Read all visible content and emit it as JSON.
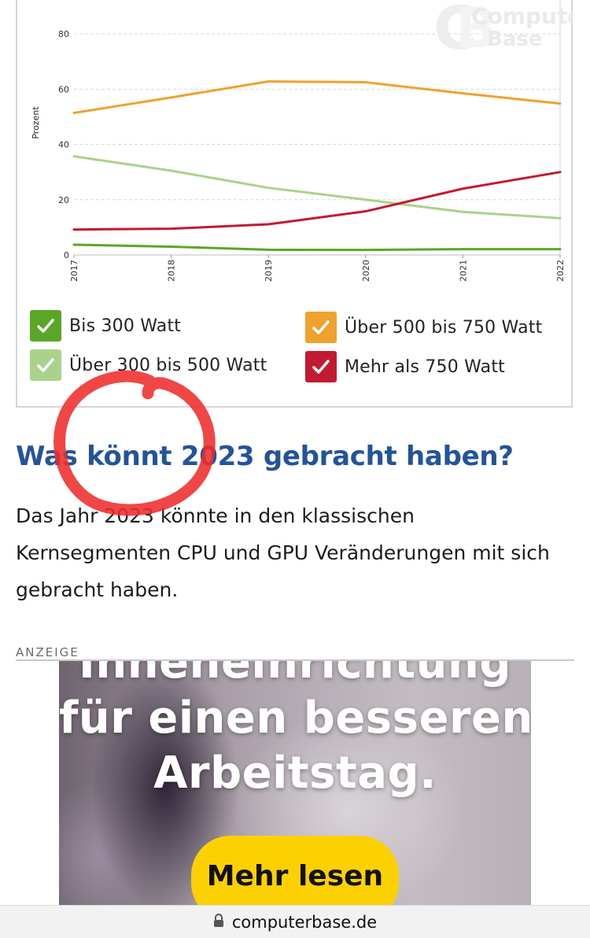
{
  "chart_data": {
    "type": "line",
    "x": [
      "2017",
      "2018",
      "2019",
      "2020",
      "2021",
      "2022"
    ],
    "ylabel": "Prozent",
    "ylim": [
      0,
      90
    ],
    "yticks": [
      0,
      20,
      40,
      60,
      80
    ],
    "grid": true,
    "series": [
      {
        "name": "Bis 300 Watt",
        "color": "#5aa627",
        "values": [
          3.7,
          3.0,
          1.9,
          1.8,
          2.1,
          2.1
        ]
      },
      {
        "name": "Über 300 bis 500 Watt",
        "color": "#a9d38a",
        "values": [
          35.7,
          30.5,
          24.3,
          20.0,
          15.6,
          13.3
        ]
      },
      {
        "name": "Über 500 bis 750 Watt",
        "color": "#f0a22e",
        "values": [
          51.4,
          57.0,
          62.8,
          62.5,
          58.5,
          54.8
        ]
      },
      {
        "name": "Mehr als 750 Watt",
        "color": "#c21a30",
        "values": [
          9.2,
          9.5,
          11.1,
          15.8,
          24.0,
          30.0
        ]
      }
    ]
  },
  "watermark": {
    "line1": "Computer",
    "line2": "Base"
  },
  "article": {
    "headline": "Was könnt 2023 gebracht haben?",
    "body": "Das Jahr 2023 könnte in den klassischen Kernsegmenten CPU und GPU Veränderungen mit sich gebracht haben."
  },
  "ad": {
    "label": "ANZEIGE",
    "line_top": "Inneneinrichtung",
    "line2": "für einen besseren",
    "line3": "Arbeitstag.",
    "cta": "Mehr lesen"
  },
  "browser": {
    "url": "computerbase.de",
    "lock_icon": "lock-icon"
  },
  "colors": {
    "headline": "#23549a",
    "annotation": "#ee2c2c",
    "cta": "#fcd103"
  }
}
